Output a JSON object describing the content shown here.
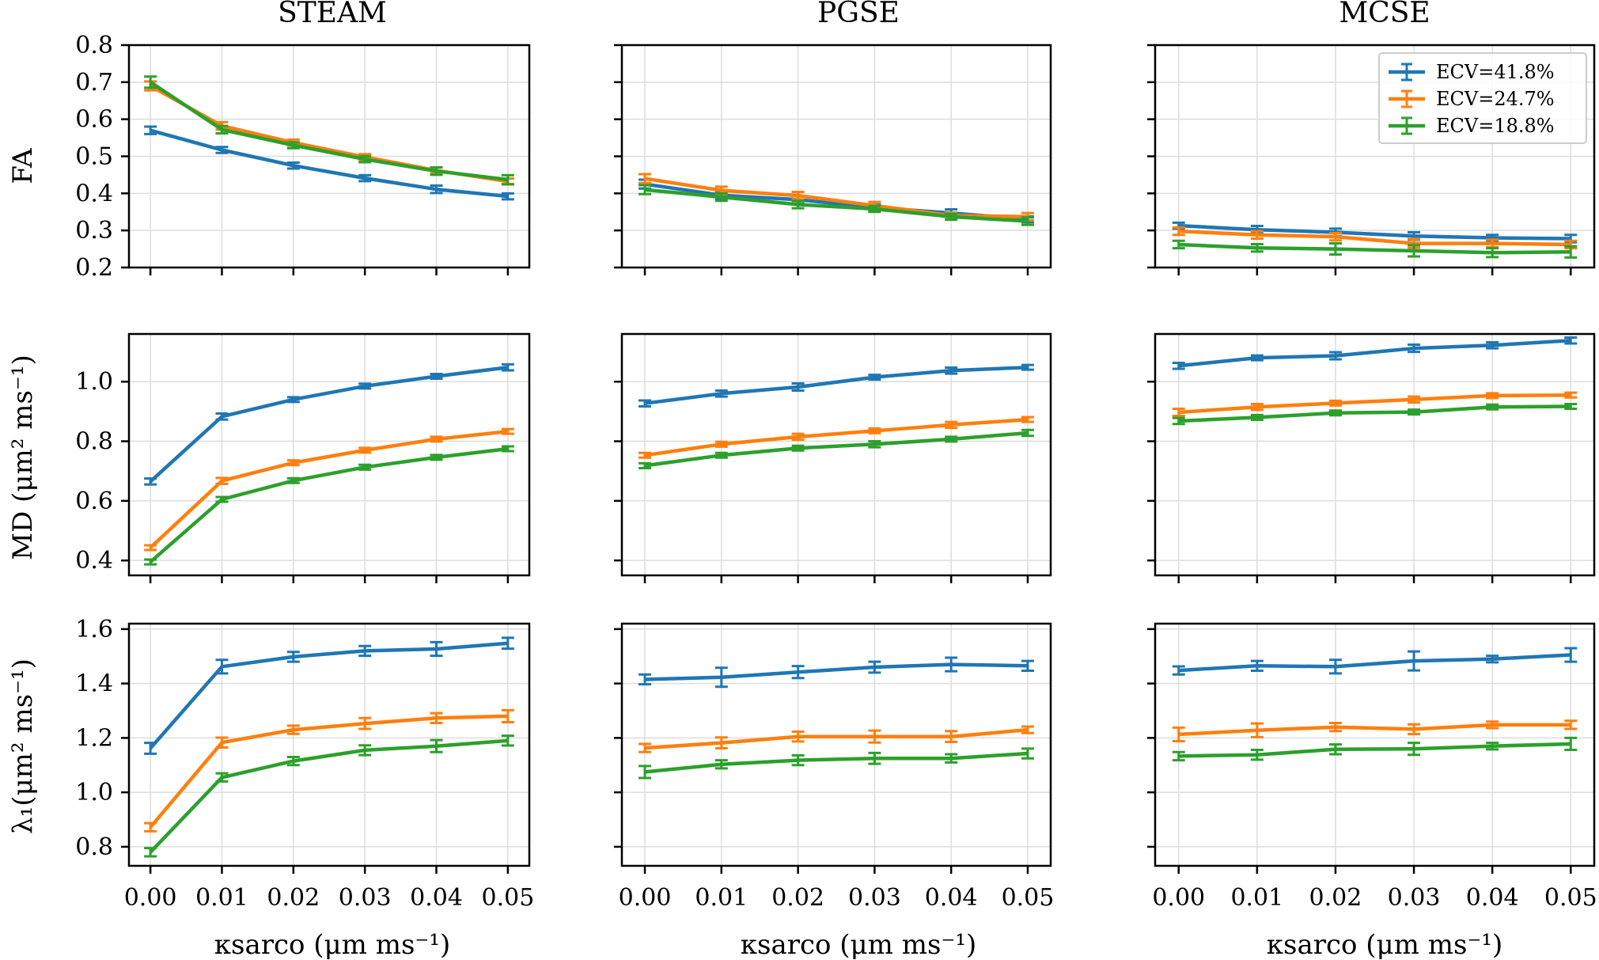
{
  "figure": {
    "column_titles": [
      "STEAM",
      "PGSE",
      "MCSE"
    ],
    "row_labels": [
      "FA",
      "MD (μm² ms⁻¹)",
      "λ₁(μm² ms⁻¹)"
    ],
    "x_label": "κsarco (μm ms⁻¹)",
    "colors": {
      "ECV=41.8%": "#1f77b4",
      "ECV=24.7%": "#ff7f0e",
      "ECV=18.8%": "#2ca02c"
    }
  },
  "chart_data": [
    {
      "type": "line",
      "title": "STEAM",
      "xlabel": "κsarco (μm ms⁻¹)",
      "ylabel": "FA",
      "x": [
        0.0,
        0.01,
        0.02,
        0.03,
        0.04,
        0.05
      ],
      "xlim": [
        -0.003,
        0.053
      ],
      "ylim": [
        0.2,
        0.8
      ],
      "xticks": [
        "0.00",
        "0.01",
        "0.02",
        "0.03",
        "0.04",
        "0.05"
      ],
      "yticks": [
        "0.2",
        "0.3",
        "0.4",
        "0.5",
        "0.6",
        "0.7",
        "0.8"
      ],
      "grid": true,
      "legend": false,
      "series": [
        {
          "name": "ECV=41.8%",
          "values": [
            0.57,
            0.517,
            0.475,
            0.441,
            0.411,
            0.392
          ],
          "err": [
            0.01,
            0.008,
            0.008,
            0.008,
            0.01,
            0.008
          ]
        },
        {
          "name": "ECV=24.7%",
          "values": [
            0.69,
            0.582,
            0.537,
            0.498,
            0.462,
            0.432
          ],
          "err": [
            0.012,
            0.01,
            0.008,
            0.008,
            0.008,
            0.008
          ]
        },
        {
          "name": "ECV=18.8%",
          "values": [
            0.7,
            0.572,
            0.53,
            0.492,
            0.46,
            0.437
          ],
          "err": [
            0.015,
            0.01,
            0.008,
            0.008,
            0.01,
            0.012
          ]
        }
      ]
    },
    {
      "type": "line",
      "title": "PGSE",
      "xlabel": "κsarco (μm ms⁻¹)",
      "ylabel": "",
      "x": [
        0.0,
        0.01,
        0.02,
        0.03,
        0.04,
        0.05
      ],
      "xlim": [
        -0.003,
        0.053
      ],
      "ylim": [
        0.2,
        0.8
      ],
      "xticks": [
        "0.00",
        "0.01",
        "0.02",
        "0.03",
        "0.04",
        "0.05"
      ],
      "yticks": [],
      "grid": true,
      "legend": false,
      "series": [
        {
          "name": "ECV=41.8%",
          "values": [
            0.425,
            0.395,
            0.383,
            0.362,
            0.347,
            0.33
          ],
          "err": [
            0.012,
            0.01,
            0.01,
            0.008,
            0.01,
            0.008
          ]
        },
        {
          "name": "ECV=24.7%",
          "values": [
            0.44,
            0.408,
            0.394,
            0.367,
            0.34,
            0.337
          ],
          "err": [
            0.012,
            0.01,
            0.01,
            0.01,
            0.008,
            0.01
          ]
        },
        {
          "name": "ECV=18.8%",
          "values": [
            0.41,
            0.39,
            0.37,
            0.358,
            0.337,
            0.325
          ],
          "err": [
            0.012,
            0.01,
            0.01,
            0.008,
            0.008,
            0.01
          ]
        }
      ]
    },
    {
      "type": "line",
      "title": "MCSE",
      "xlabel": "κsarco (μm ms⁻¹)",
      "ylabel": "",
      "x": [
        0.0,
        0.01,
        0.02,
        0.03,
        0.04,
        0.05
      ],
      "xlim": [
        -0.003,
        0.053
      ],
      "ylim": [
        0.2,
        0.8
      ],
      "xticks": [
        "0.00",
        "0.01",
        "0.02",
        "0.03",
        "0.04",
        "0.05"
      ],
      "yticks": [],
      "grid": true,
      "legend": true,
      "legend_position": "top-right",
      "series": [
        {
          "name": "ECV=41.8%",
          "values": [
            0.313,
            0.302,
            0.295,
            0.285,
            0.28,
            0.278
          ],
          "err": [
            0.008,
            0.01,
            0.01,
            0.01,
            0.008,
            0.01
          ]
        },
        {
          "name": "ECV=24.7%",
          "values": [
            0.298,
            0.288,
            0.283,
            0.265,
            0.265,
            0.262
          ],
          "err": [
            0.01,
            0.01,
            0.01,
            0.012,
            0.01,
            0.01
          ]
        },
        {
          "name": "ECV=18.8%",
          "values": [
            0.262,
            0.253,
            0.25,
            0.245,
            0.24,
            0.242
          ],
          "err": [
            0.01,
            0.01,
            0.015,
            0.015,
            0.012,
            0.015
          ]
        }
      ]
    },
    {
      "type": "line",
      "title": "",
      "xlabel": "κsarco (μm ms⁻¹)",
      "ylabel": "MD (μm² ms⁻¹)",
      "x": [
        0.0,
        0.01,
        0.02,
        0.03,
        0.04,
        0.05
      ],
      "xlim": [
        -0.003,
        0.053
      ],
      "ylim": [
        0.35,
        1.16
      ],
      "xticks": [
        "0.00",
        "0.01",
        "0.02",
        "0.03",
        "0.04",
        "0.05"
      ],
      "yticks": [
        "0.4",
        "0.6",
        "0.8",
        "1.0"
      ],
      "grid": true,
      "legend": false,
      "series": [
        {
          "name": "ECV=41.8%",
          "values": [
            0.665,
            0.883,
            0.94,
            0.985,
            1.018,
            1.048
          ],
          "err": [
            0.01,
            0.01,
            0.008,
            0.008,
            0.008,
            0.01
          ]
        },
        {
          "name": "ECV=24.7%",
          "values": [
            0.443,
            0.667,
            0.728,
            0.77,
            0.807,
            0.833
          ],
          "err": [
            0.008,
            0.01,
            0.008,
            0.008,
            0.008,
            0.008
          ]
        },
        {
          "name": "ECV=18.8%",
          "values": [
            0.395,
            0.605,
            0.668,
            0.713,
            0.746,
            0.775
          ],
          "err": [
            0.008,
            0.008,
            0.008,
            0.008,
            0.008,
            0.008
          ]
        }
      ]
    },
    {
      "type": "line",
      "title": "",
      "xlabel": "κsarco (μm ms⁻¹)",
      "ylabel": "",
      "x": [
        0.0,
        0.01,
        0.02,
        0.03,
        0.04,
        0.05
      ],
      "xlim": [
        -0.003,
        0.053
      ],
      "ylim": [
        0.35,
        1.16
      ],
      "xticks": [
        "0.00",
        "0.01",
        "0.02",
        "0.03",
        "0.04",
        "0.05"
      ],
      "yticks": [],
      "grid": true,
      "legend": false,
      "series": [
        {
          "name": "ECV=41.8%",
          "values": [
            0.927,
            0.96,
            0.982,
            1.015,
            1.037,
            1.048
          ],
          "err": [
            0.01,
            0.01,
            0.012,
            0.008,
            0.01,
            0.008
          ]
        },
        {
          "name": "ECV=24.7%",
          "values": [
            0.753,
            0.79,
            0.815,
            0.835,
            0.855,
            0.873
          ],
          "err": [
            0.008,
            0.008,
            0.01,
            0.008,
            0.01,
            0.008
          ]
        },
        {
          "name": "ECV=18.8%",
          "values": [
            0.718,
            0.753,
            0.777,
            0.79,
            0.807,
            0.828
          ],
          "err": [
            0.008,
            0.008,
            0.008,
            0.01,
            0.008,
            0.01
          ]
        }
      ]
    },
    {
      "type": "line",
      "title": "",
      "xlabel": "κsarco (μm ms⁻¹)",
      "ylabel": "",
      "x": [
        0.0,
        0.01,
        0.02,
        0.03,
        0.04,
        0.05
      ],
      "xlim": [
        -0.003,
        0.053
      ],
      "ylim": [
        0.35,
        1.16
      ],
      "xticks": [
        "0.00",
        "0.01",
        "0.02",
        "0.03",
        "0.04",
        "0.05"
      ],
      "yticks": [],
      "grid": true,
      "legend": false,
      "series": [
        {
          "name": "ECV=41.8%",
          "values": [
            1.053,
            1.08,
            1.087,
            1.112,
            1.122,
            1.138
          ],
          "err": [
            0.01,
            0.008,
            0.012,
            0.012,
            0.01,
            0.01
          ]
        },
        {
          "name": "ECV=24.7%",
          "values": [
            0.897,
            0.915,
            0.928,
            0.94,
            0.953,
            0.955
          ],
          "err": [
            0.012,
            0.01,
            0.008,
            0.01,
            0.008,
            0.008
          ]
        },
        {
          "name": "ECV=18.8%",
          "values": [
            0.868,
            0.88,
            0.895,
            0.898,
            0.915,
            0.917
          ],
          "err": [
            0.01,
            0.008,
            0.008,
            0.008,
            0.008,
            0.008
          ]
        }
      ]
    },
    {
      "type": "line",
      "title": "",
      "xlabel": "κsarco (μm ms⁻¹)",
      "ylabel": "λ₁(μm² ms⁻¹)",
      "x": [
        0.0,
        0.01,
        0.02,
        0.03,
        0.04,
        0.05
      ],
      "xlim": [
        -0.003,
        0.053
      ],
      "ylim": [
        0.73,
        1.62
      ],
      "xticks": [
        "0.00",
        "0.01",
        "0.02",
        "0.03",
        "0.04",
        "0.05"
      ],
      "yticks": [
        "0.8",
        "1.0",
        "1.2",
        "1.4",
        "1.6"
      ],
      "grid": true,
      "legend": false,
      "series": [
        {
          "name": "ECV=41.8%",
          "values": [
            1.162,
            1.462,
            1.498,
            1.52,
            1.527,
            1.548
          ],
          "err": [
            0.02,
            0.025,
            0.018,
            0.018,
            0.025,
            0.02
          ]
        },
        {
          "name": "ECV=24.7%",
          "values": [
            0.872,
            1.183,
            1.23,
            1.253,
            1.273,
            1.28
          ],
          "err": [
            0.015,
            0.018,
            0.015,
            0.02,
            0.018,
            0.022
          ]
        },
        {
          "name": "ECV=18.8%",
          "values": [
            0.78,
            1.055,
            1.115,
            1.155,
            1.17,
            1.19
          ],
          "err": [
            0.015,
            0.015,
            0.015,
            0.018,
            0.022,
            0.018
          ]
        }
      ]
    },
    {
      "type": "line",
      "title": "",
      "xlabel": "κsarco (μm ms⁻¹)",
      "ylabel": "",
      "x": [
        0.0,
        0.01,
        0.02,
        0.03,
        0.04,
        0.05
      ],
      "xlim": [
        -0.003,
        0.053
      ],
      "ylim": [
        0.73,
        1.62
      ],
      "xticks": [
        "0.00",
        "0.01",
        "0.02",
        "0.03",
        "0.04",
        "0.05"
      ],
      "yticks": [],
      "grid": true,
      "legend": false,
      "series": [
        {
          "name": "ECV=41.8%",
          "values": [
            1.415,
            1.423,
            1.442,
            1.46,
            1.47,
            1.465
          ],
          "err": [
            0.018,
            0.035,
            0.022,
            0.02,
            0.025,
            0.018
          ]
        },
        {
          "name": "ECV=24.7%",
          "values": [
            1.163,
            1.182,
            1.205,
            1.205,
            1.205,
            1.23
          ],
          "err": [
            0.015,
            0.02,
            0.018,
            0.022,
            0.02,
            0.012
          ]
        },
        {
          "name": "ECV=18.8%",
          "values": [
            1.075,
            1.103,
            1.118,
            1.125,
            1.125,
            1.143
          ],
          "err": [
            0.022,
            0.015,
            0.018,
            0.02,
            0.015,
            0.018
          ]
        }
      ]
    },
    {
      "type": "line",
      "title": "",
      "xlabel": "κsarco (μm ms⁻¹)",
      "ylabel": "",
      "x": [
        0.0,
        0.01,
        0.02,
        0.03,
        0.04,
        0.05
      ],
      "xlim": [
        -0.003,
        0.053
      ],
      "ylim": [
        0.73,
        1.62
      ],
      "xticks": [
        "0.00",
        "0.01",
        "0.02",
        "0.03",
        "0.04",
        "0.05"
      ],
      "yticks": [],
      "grid": true,
      "legend": false,
      "series": [
        {
          "name": "ECV=41.8%",
          "values": [
            1.448,
            1.465,
            1.462,
            1.483,
            1.49,
            1.505
          ],
          "err": [
            0.015,
            0.018,
            0.025,
            0.035,
            0.012,
            0.025
          ]
        },
        {
          "name": "ECV=24.7%",
          "values": [
            1.213,
            1.228,
            1.24,
            1.232,
            1.248,
            1.248
          ],
          "err": [
            0.025,
            0.025,
            0.015,
            0.018,
            0.012,
            0.015
          ]
        },
        {
          "name": "ECV=18.8%",
          "values": [
            1.133,
            1.138,
            1.158,
            1.16,
            1.17,
            1.178
          ],
          "err": [
            0.015,
            0.018,
            0.018,
            0.022,
            0.012,
            0.022
          ]
        }
      ]
    }
  ]
}
